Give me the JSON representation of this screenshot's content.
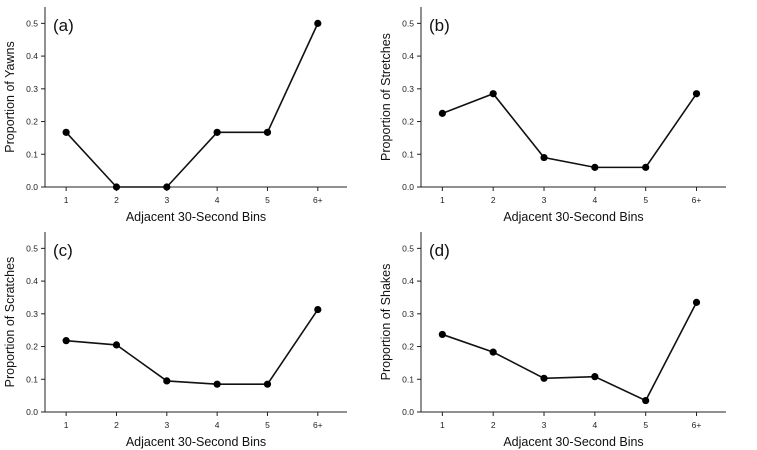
{
  "chart_data": [
    {
      "type": "line",
      "panel_label": "(a)",
      "categories": [
        "1",
        "2",
        "3",
        "4",
        "5",
        "6+"
      ],
      "values": [
        0.167,
        0.0,
        0.0,
        0.167,
        0.167,
        0.5
      ],
      "xlabel": "Adjacent 30-Second Bins",
      "ylabel": "Proportion of Yawns",
      "ylim": [
        0,
        0.55
      ],
      "yticks": [
        "0.0",
        "0.1",
        "0.2",
        "0.3",
        "0.4",
        "0.5"
      ],
      "grid": false
    },
    {
      "type": "line",
      "panel_label": "(b)",
      "categories": [
        "1",
        "2",
        "3",
        "4",
        "5",
        "6+"
      ],
      "values": [
        0.225,
        0.285,
        0.09,
        0.06,
        0.06,
        0.285
      ],
      "xlabel": "Adjacent 30-Second Bins",
      "ylabel": "Proportion of Stretches",
      "ylim": [
        0,
        0.55
      ],
      "yticks": [
        "0.0",
        "0.1",
        "0.2",
        "0.3",
        "0.4",
        "0.5"
      ],
      "grid": false
    },
    {
      "type": "line",
      "panel_label": "(c)",
      "categories": [
        "1",
        "2",
        "3",
        "4",
        "5",
        "6+"
      ],
      "values": [
        0.218,
        0.205,
        0.095,
        0.085,
        0.085,
        0.313
      ],
      "xlabel": "Adjacent 30-Second Bins",
      "ylabel": "Proportion of Scratches",
      "ylim": [
        0,
        0.55
      ],
      "yticks": [
        "0.0",
        "0.1",
        "0.2",
        "0.3",
        "0.4",
        "0.5"
      ],
      "grid": false
    },
    {
      "type": "line",
      "panel_label": "(d)",
      "categories": [
        "1",
        "2",
        "3",
        "4",
        "5",
        "6+"
      ],
      "values": [
        0.237,
        0.183,
        0.103,
        0.108,
        0.035,
        0.335
      ],
      "xlabel": "Adjacent 30-Second Bins",
      "ylabel": "Proportion of Shakes",
      "ylim": [
        0,
        0.55
      ],
      "yticks": [
        "0.0",
        "0.1",
        "0.2",
        "0.3",
        "0.4",
        "0.5"
      ],
      "grid": false
    }
  ]
}
